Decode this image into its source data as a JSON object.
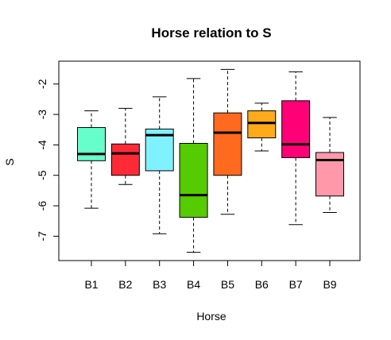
{
  "chart_data": {
    "type": "boxplot",
    "title": "Horse relation to S",
    "xlabel": "Horse",
    "ylabel": "S",
    "ylim": [
      -7.8,
      -1.25
    ],
    "yticks": [
      -7,
      -6,
      -5,
      -4,
      -3,
      -2
    ],
    "ytick_labels": [
      "-7",
      "-6",
      "-5",
      "-4",
      "-3",
      "-2"
    ],
    "categories": [
      "B1",
      "B2",
      "B3",
      "B4",
      "B5",
      "B6",
      "B7",
      "B9"
    ],
    "boxes": [
      {
        "label": "B1",
        "color": "#66ffcc",
        "whisker_low": -6.08,
        "q1": -4.52,
        "median": -4.3,
        "q3": -3.43,
        "whisker_high": -2.88
      },
      {
        "label": "B2",
        "color": "#ff2a36",
        "whisker_low": -5.3,
        "q1": -5.0,
        "median": -4.28,
        "q3": -3.97,
        "whisker_high": -2.8
      },
      {
        "label": "B3",
        "color": "#80f2ff",
        "whisker_low": -6.92,
        "q1": -4.85,
        "median": -3.68,
        "q3": -3.48,
        "whisker_high": -2.42
      },
      {
        "label": "B4",
        "color": "#55cc00",
        "whisker_low": -7.53,
        "q1": -6.38,
        "median": -5.65,
        "q3": -3.95,
        "whisker_high": -1.82
      },
      {
        "label": "B5",
        "color": "#ff6a1f",
        "whisker_low": -6.28,
        "q1": -5.0,
        "median": -3.6,
        "q3": -2.95,
        "whisker_high": -1.52
      },
      {
        "label": "B6",
        "color": "#ffaa1a",
        "whisker_low": -4.2,
        "q1": -3.77,
        "median": -3.28,
        "q3": -2.88,
        "whisker_high": -2.63
      },
      {
        "label": "B7",
        "color": "#ff0077",
        "whisker_low": -6.62,
        "q1": -4.42,
        "median": -3.98,
        "q3": -2.55,
        "whisker_high": -1.6
      },
      {
        "label": "B9",
        "color": "#ff99aa",
        "whisker_low": -6.22,
        "q1": -5.68,
        "median": -4.5,
        "q3": -4.25,
        "whisker_high": -3.1
      }
    ],
    "grid": false,
    "legend": "none"
  }
}
